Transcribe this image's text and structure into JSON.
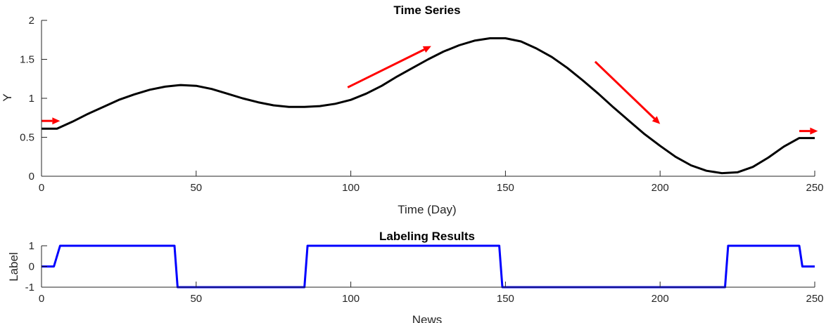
{
  "chart_data": [
    {
      "type": "line",
      "title": "Time Series",
      "xlabel": "Time (Day)",
      "ylabel": "Y",
      "xlim": [
        0,
        250
      ],
      "ylim": [
        0,
        2
      ],
      "xticks": [
        0,
        50,
        100,
        150,
        200,
        250
      ],
      "yticks": [
        0,
        0.5,
        1,
        1.5,
        2
      ],
      "xtick_labels": [
        "0",
        "50",
        "100",
        "150",
        "200",
        "250"
      ],
      "ytick_labels": [
        "0",
        "0.5",
        "1",
        "1.5",
        "2"
      ],
      "grid": false,
      "series": [
        {
          "color": "#000000",
          "x": [
            0,
            5,
            10,
            15,
            20,
            25,
            30,
            35,
            40,
            45,
            50,
            55,
            60,
            65,
            70,
            75,
            80,
            85,
            90,
            95,
            100,
            105,
            110,
            115,
            120,
            125,
            130,
            135,
            140,
            145,
            150,
            155,
            160,
            165,
            170,
            175,
            180,
            185,
            190,
            195,
            200,
            205,
            210,
            215,
            220,
            225,
            230,
            235,
            240,
            245,
            250
          ],
          "y": [
            0.61,
            0.61,
            0.7,
            0.8,
            0.89,
            0.98,
            1.05,
            1.11,
            1.15,
            1.17,
            1.16,
            1.12,
            1.06,
            1.0,
            0.95,
            0.91,
            0.89,
            0.89,
            0.9,
            0.93,
            0.98,
            1.06,
            1.16,
            1.28,
            1.39,
            1.5,
            1.6,
            1.68,
            1.74,
            1.77,
            1.77,
            1.73,
            1.64,
            1.53,
            1.39,
            1.23,
            1.06,
            0.88,
            0.71,
            0.54,
            0.39,
            0.25,
            0.14,
            0.07,
            0.04,
            0.05,
            0.12,
            0.24,
            0.38,
            0.49,
            0.49
          ]
        }
      ],
      "annotations": [
        {
          "type": "arrow",
          "color": "#ff0000",
          "from": [
            0,
            0.71
          ],
          "to": [
            6,
            0.71
          ]
        },
        {
          "type": "arrow",
          "color": "#ff0000",
          "from": [
            99,
            1.14
          ],
          "to": [
            126,
            1.67
          ]
        },
        {
          "type": "arrow",
          "color": "#ff0000",
          "from": [
            179,
            1.47
          ],
          "to": [
            200,
            0.67
          ]
        },
        {
          "type": "arrow",
          "color": "#ff0000",
          "from": [
            245,
            0.58
          ],
          "to": [
            251,
            0.58
          ]
        }
      ]
    },
    {
      "type": "line",
      "title": "Labeling Results",
      "xlabel": "News",
      "ylabel": "Label",
      "xlim": [
        0,
        250
      ],
      "ylim": [
        -1,
        1
      ],
      "xticks": [
        0,
        50,
        100,
        150,
        200,
        250
      ],
      "yticks": [
        -1,
        0,
        1
      ],
      "xtick_labels": [
        "0",
        "50",
        "100",
        "150",
        "200",
        "250"
      ],
      "ytick_labels": [
        "-1",
        "0",
        "1"
      ],
      "grid": false,
      "series": [
        {
          "color": "#0000ff",
          "x": [
            0,
            4,
            6,
            43,
            44,
            85,
            86,
            148,
            149,
            221,
            222,
            245,
            246,
            250
          ],
          "y": [
            0,
            0,
            1,
            1,
            -1,
            -1,
            1,
            1,
            -1,
            -1,
            1,
            1,
            0,
            0
          ]
        }
      ]
    }
  ]
}
